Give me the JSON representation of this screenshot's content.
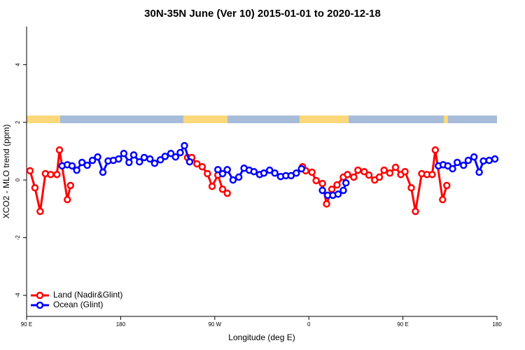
{
  "chart_data": {
    "type": "line",
    "title": "30N-35N June (Ver 10)   2015-01-01 to 2020-12-18",
    "x_label": "Longitude (deg E)",
    "y_label": "XCO2 - MLO trend (ppm)",
    "xlim": [
      90,
      540
    ],
    "xticks": [
      {
        "value": 90,
        "label": "90 E"
      },
      180,
      {
        "value": 270,
        "label": "90 W"
      },
      {
        "value": 360,
        "label": "0"
      },
      {
        "value": 450,
        "label": "90 E"
      },
      {
        "value": 540,
        "label": "180"
      }
    ],
    "ylim": [
      -4.73,
      5.32
    ],
    "yticks": [
      4,
      2,
      0,
      -2,
      -4
    ],
    "legend": "bottom-left",
    "series": [
      {
        "name": "Land (Nadir&Glint)",
        "color": "#ff0000",
        "x": [
          93.3,
          98,
          103,
          108,
          113,
          119,
          121.5,
          129,
          132,
          null,
          244,
          248,
          253,
          258,
          263,
          267.5,
          273,
          277.5,
          282,
          null,
          354,
          357,
          363,
          367,
          373,
          377,
          382,
          387,
          393,
          397,
          403,
          407,
          413,
          417.5,
          423,
          427.5,
          432,
          437.5,
          443,
          448,
          452,
          458,
          462,
          468,
          473,
          478,
          481,
          488,
          492
        ],
        "values": [
          0.32,
          -0.27,
          -1.09,
          0.22,
          0.19,
          0.19,
          1.04,
          -0.68,
          -0.19,
          null,
          0.78,
          0.78,
          0.56,
          0.46,
          0.22,
          -0.22,
          0.17,
          -0.32,
          -0.46,
          null,
          0.46,
          0.32,
          0.27,
          -0.02,
          -0.12,
          -0.83,
          -0.32,
          -0.17,
          0.1,
          0.19,
          0.1,
          0.34,
          0.29,
          0.17,
          0,
          0.1,
          0.34,
          0.24,
          0.44,
          0.19,
          0.29,
          -0.27,
          -1.09,
          0.22,
          0.19,
          0.19,
          1.04,
          -0.68,
          -0.19
        ]
      },
      {
        "name": "Ocean (Glint)",
        "color": "#0000ff",
        "x": [
          124,
          129,
          133.5,
          138,
          143,
          148,
          153,
          158,
          163,
          168,
          173,
          178,
          183,
          188,
          192.5,
          198,
          202.5,
          208,
          212.5,
          218,
          222.5,
          228,
          232.5,
          237,
          241,
          246,
          null,
          273,
          277.5,
          282,
          287.5,
          293,
          298,
          303,
          307.5,
          313,
          317,
          322.5,
          327.5,
          333,
          338,
          343,
          348,
          353,
          null,
          373,
          378,
          383,
          388,
          393,
          395.5,
          null,
          484,
          488.5,
          493,
          497.5,
          502,
          508,
          512.5,
          518,
          523,
          527,
          532.5,
          538
        ],
        "values": [
          0.49,
          0.53,
          0.49,
          0.34,
          0.61,
          0.51,
          0.68,
          0.8,
          0.27,
          0.66,
          0.68,
          0.73,
          0.92,
          0.61,
          0.87,
          0.63,
          0.78,
          0.73,
          0.58,
          0.7,
          0.82,
          0.92,
          0.8,
          0.95,
          1.19,
          0.63,
          null,
          0.36,
          0.22,
          0.36,
          0,
          0.1,
          0.41,
          0.34,
          0.29,
          0.19,
          0.24,
          0.34,
          0.24,
          0.12,
          0.15,
          0.15,
          0.24,
          0.39,
          null,
          -0.36,
          -0.53,
          -0.53,
          -0.49,
          -0.36,
          -0.1,
          null,
          0.49,
          0.53,
          0.49,
          0.39,
          0.61,
          0.51,
          0.68,
          0.8,
          0.27,
          0.66,
          0.68,
          0.73
        ]
      }
    ]
  }
}
